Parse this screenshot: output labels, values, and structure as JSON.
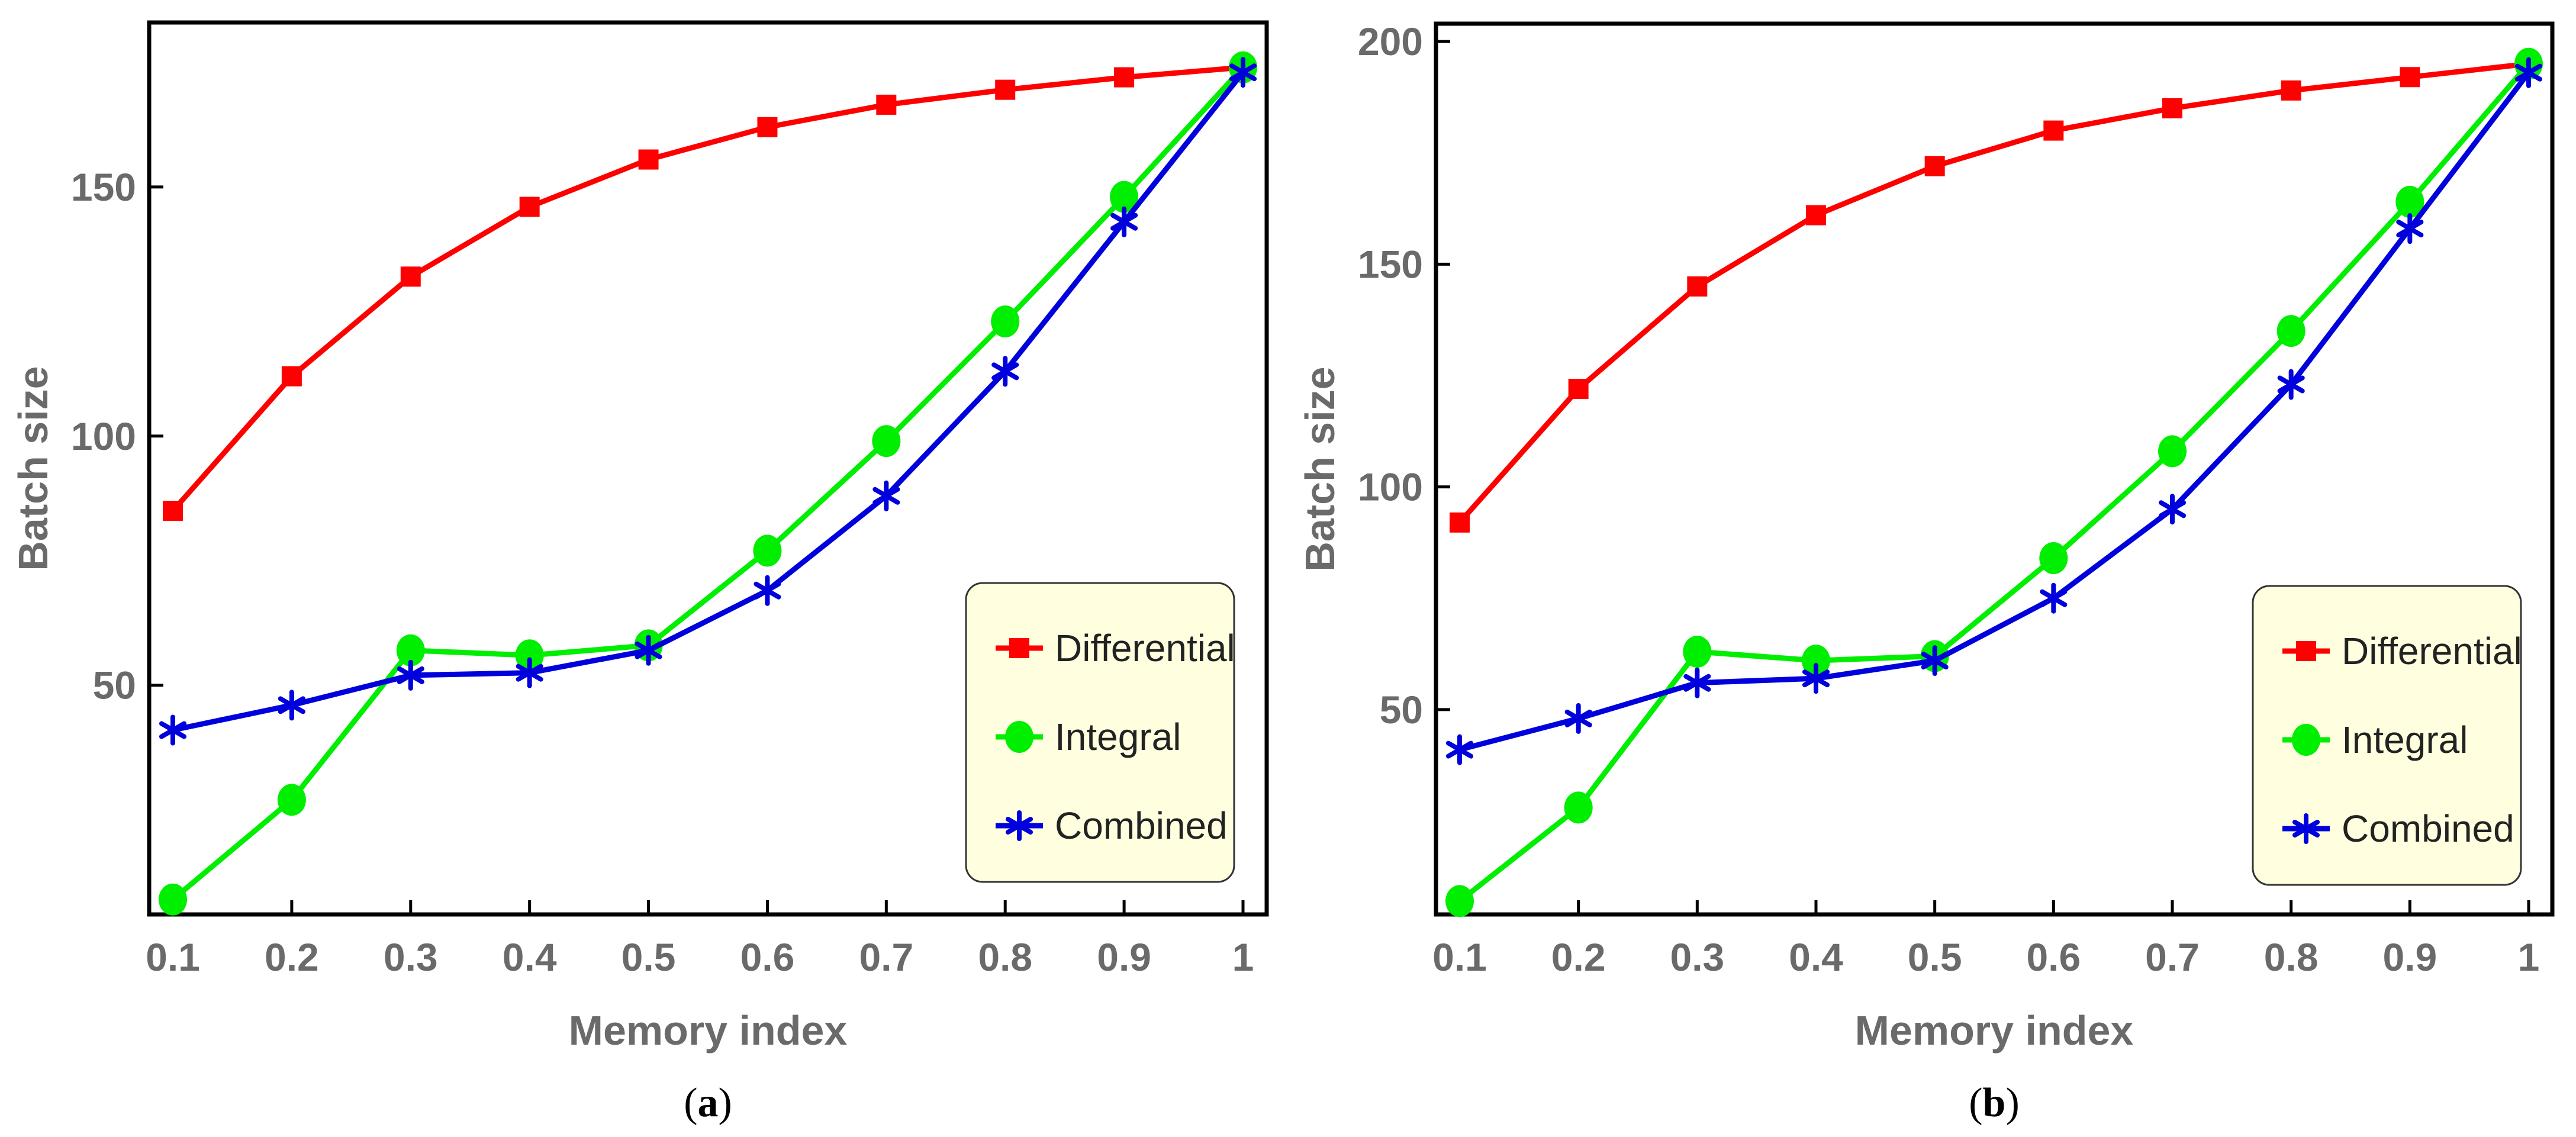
{
  "chart_data": [
    {
      "type": "line",
      "panel_label": "a",
      "categories": [
        "0.1",
        "0.2",
        "0.3",
        "0.4",
        "0.5",
        "0.6",
        "0.7",
        "0.8",
        "0.9",
        "1"
      ],
      "x": [
        0.1,
        0.2,
        0.3,
        0.4,
        0.5,
        0.6,
        0.7,
        0.8,
        0.9,
        1.0
      ],
      "xlabel": "Memory index",
      "ylabel": "Batch size",
      "ylim": [
        4,
        183
      ],
      "yticks": [
        50,
        100,
        150
      ],
      "legend": "bottom-right",
      "series": [
        {
          "name": "Differential",
          "color": "#ff0000",
          "marker": "square",
          "values": [
            85,
            112,
            132,
            146,
            155.5,
            162,
            166.5,
            169.5,
            172,
            174
          ]
        },
        {
          "name": "Integral",
          "color": "#00ee00",
          "marker": "circle",
          "values": [
            7,
            27,
            57,
            56,
            58,
            77,
            99,
            123,
            148,
            174
          ]
        },
        {
          "name": "Combined",
          "color": "#0000dd",
          "marker": "star",
          "values": [
            41,
            46,
            52,
            52.5,
            57,
            69,
            88,
            113,
            143,
            173
          ]
        }
      ]
    },
    {
      "type": "line",
      "panel_label": "b",
      "categories": [
        "0.1",
        "0.2",
        "0.3",
        "0.4",
        "0.5",
        "0.6",
        "0.7",
        "0.8",
        "0.9",
        "1"
      ],
      "x": [
        0.1,
        0.2,
        0.3,
        0.4,
        0.5,
        0.6,
        0.7,
        0.8,
        0.9,
        1.0
      ],
      "xlabel": "Memory index",
      "ylabel": "Batch size",
      "ylim": [
        4,
        204
      ],
      "yticks": [
        50,
        100,
        150,
        200
      ],
      "legend": "bottom-right",
      "series": [
        {
          "name": "Differential",
          "color": "#ff0000",
          "marker": "square",
          "values": [
            92,
            122,
            145,
            161,
            172,
            180,
            185,
            189,
            192,
            195
          ]
        },
        {
          "name": "Integral",
          "color": "#00ee00",
          "marker": "circle",
          "values": [
            7,
            28,
            63,
            61,
            62,
            84,
            108,
            135,
            164,
            195
          ]
        },
        {
          "name": "Combined",
          "color": "#0000dd",
          "marker": "star",
          "values": [
            41,
            48,
            56,
            57,
            61,
            75,
            95,
            123,
            158,
            193
          ]
        }
      ]
    }
  ]
}
